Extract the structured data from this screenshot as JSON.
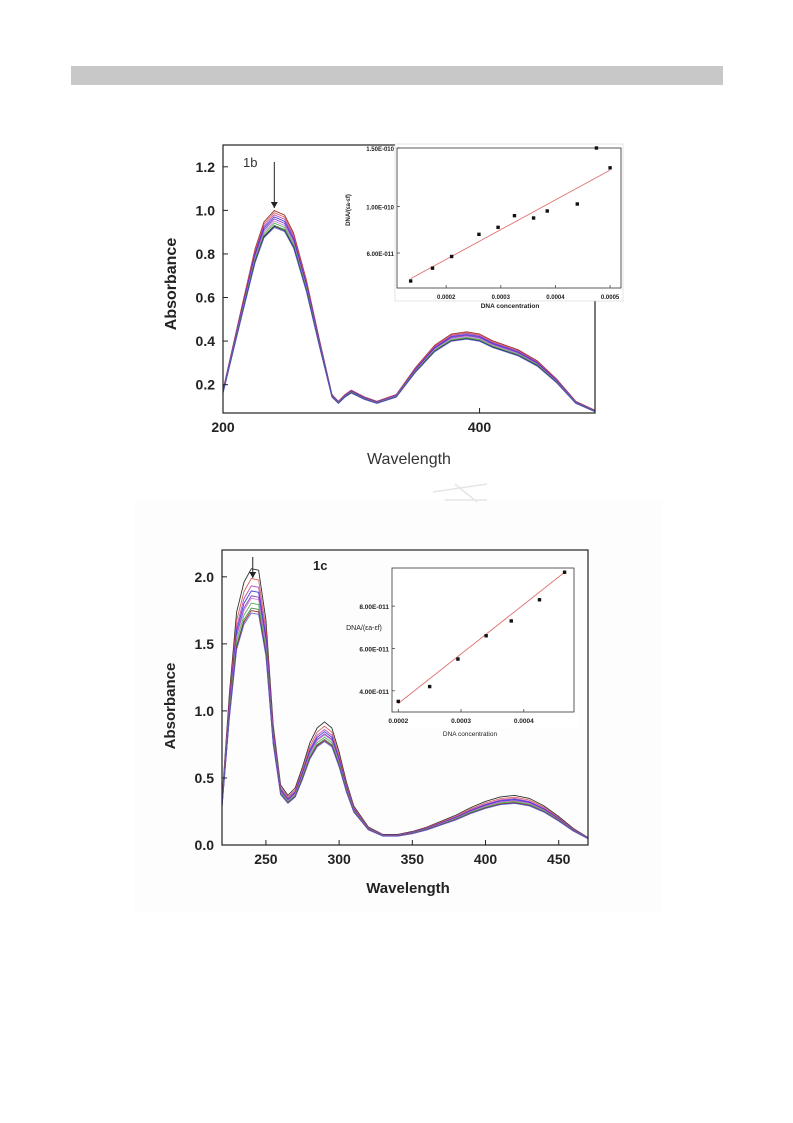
{
  "page": {
    "colors": {
      "header_bar": "#c8c8c8",
      "fit_line": "#e07070",
      "points": "#111111"
    }
  },
  "chart_data": [
    {
      "type": "line",
      "panel_label": "1b",
      "xlabel": "Wavelength",
      "ylabel": "Absorbance",
      "xlim": [
        200,
        490
      ],
      "ylim": [
        0.07,
        1.3
      ],
      "x_ticks": [
        "200",
        "400"
      ],
      "y_ticks": [
        "0.2",
        "0.4",
        "0.6",
        "0.8",
        "1.0",
        "1.2"
      ],
      "x_tick_values": [
        200,
        400
      ],
      "y_tick_values": [
        0.2,
        0.4,
        0.6,
        0.8,
        1.0,
        1.2
      ],
      "arrow_at_x": 240,
      "series_colors": [
        "#8b1a1a",
        "#d0554f",
        "#b83cb8",
        "#2a2ad6",
        "#7a2ab8",
        "#c878d8",
        "#4aa84a",
        "#3a7f3a",
        "#1a1a1a",
        "#5a5ad8"
      ],
      "series_scales": [
        1.03,
        1.02,
        1.01,
        1.0,
        0.99,
        0.98,
        0.97,
        0.96,
        0.955,
        0.95
      ],
      "profile": {
        "x": [
          200,
          215,
          225,
          232,
          240,
          248,
          255,
          265,
          275,
          285,
          290,
          295,
          300,
          310,
          320,
          335,
          350,
          365,
          378,
          390,
          400,
          410,
          420,
          430,
          445,
          460,
          475,
          490
        ],
        "y": [
          0.17,
          0.55,
          0.8,
          0.92,
          0.97,
          0.95,
          0.87,
          0.66,
          0.4,
          0.15,
          0.12,
          0.15,
          0.17,
          0.14,
          0.12,
          0.15,
          0.27,
          0.37,
          0.42,
          0.43,
          0.42,
          0.39,
          0.37,
          0.35,
          0.3,
          0.22,
          0.12,
          0.08
        ]
      },
      "inset": {
        "type": "scatter",
        "xlabel": "DNA concentration",
        "ylabel": "DNA/(εa-εf)",
        "xlim": [
          0.00011,
          0.00052
        ],
        "ylim": [
          3e-11,
          1.5e-10
        ],
        "x_ticks": [
          "0.0002",
          "0.0003",
          "0.0004",
          "0.0005"
        ],
        "y_ticks": [
          "6.00E-011",
          "1.00E-010",
          "1.50E-010"
        ],
        "x_tick_values": [
          0.0002,
          0.0003,
          0.0004,
          0.0005
        ],
        "y_tick_values": [
          6e-11,
          1e-10,
          1.5e-10
        ],
        "points": {
          "x": [
            0.000135,
            0.000175,
            0.00021,
            0.00026,
            0.000295,
            0.000325,
            0.00036,
            0.000385,
            0.00044,
            0.000475,
            0.0005
          ],
          "y": [
            3.6e-11,
            4.7e-11,
            5.7e-11,
            7.6e-11,
            8.2e-11,
            9.2e-11,
            9e-11,
            9.6e-11,
            1.02e-10,
            1.5e-10,
            1.33e-10
          ]
        },
        "fit": {
          "x": [
            0.000135,
            0.0005
          ],
          "y": [
            3.8e-11,
            1.31e-10
          ]
        }
      }
    },
    {
      "type": "line",
      "panel_label": "1c",
      "xlabel": "Wavelength",
      "ylabel": "Absorbance",
      "xlim": [
        220,
        470
      ],
      "ylim": [
        0,
        2.2
      ],
      "x_ticks": [
        "250",
        "300",
        "350",
        "400",
        "450"
      ],
      "y_ticks": [
        "0.0",
        "0.5",
        "1.0",
        "1.5",
        "2.0"
      ],
      "x_tick_values": [
        250,
        300,
        350,
        400,
        450
      ],
      "y_tick_values": [
        0.0,
        0.5,
        1.0,
        1.5,
        2.0
      ],
      "arrow_at_x": 241,
      "series_colors": [
        "#1a1a1a",
        "#d0554f",
        "#b83cb8",
        "#2a2ad6",
        "#7a2ab8",
        "#c878d8",
        "#4aa84a",
        "#3a7f3a",
        "#8b1a1a",
        "#5a5ad8"
      ],
      "series_scales": [
        1.12,
        1.08,
        1.05,
        1.03,
        1.01,
        1.0,
        0.98,
        0.96,
        0.95,
        0.94
      ],
      "profile": {
        "x": [
          220,
          225,
          230,
          235,
          240,
          245,
          250,
          255,
          260,
          265,
          270,
          275,
          280,
          285,
          290,
          295,
          300,
          305,
          310,
          320,
          330,
          340,
          350,
          360,
          370,
          380,
          390,
          400,
          410,
          420,
          430,
          440,
          450,
          460,
          470
        ],
        "y": [
          0.3,
          1.0,
          1.55,
          1.75,
          1.84,
          1.83,
          1.5,
          0.8,
          0.4,
          0.33,
          0.38,
          0.52,
          0.68,
          0.78,
          0.82,
          0.78,
          0.62,
          0.42,
          0.26,
          0.12,
          0.07,
          0.07,
          0.09,
          0.12,
          0.16,
          0.2,
          0.25,
          0.29,
          0.32,
          0.33,
          0.31,
          0.26,
          0.19,
          0.11,
          0.05
        ]
      },
      "inset": {
        "type": "scatter",
        "xlabel": "DNA concentration",
        "ylabel": "DNA/(εa-εf)",
        "xlim": [
          0.00019,
          0.00048
        ],
        "ylim": [
          3e-11,
          9.8e-11
        ],
        "x_ticks": [
          "0.0002",
          "0.0003",
          "0.0004"
        ],
        "y_ticks": [
          "4.00E-011",
          "6.00E-011",
          "8.00E-011"
        ],
        "x_tick_values": [
          0.0002,
          0.0003,
          0.0004
        ],
        "y_tick_values": [
          4e-11,
          6e-11,
          8e-11
        ],
        "points": {
          "x": [
            0.0002,
            0.00025,
            0.000295,
            0.00034,
            0.00038,
            0.000425,
            0.000465
          ],
          "y": [
            3.5e-11,
            4.2e-11,
            5.5e-11,
            6.6e-11,
            7.3e-11,
            8.3e-11,
            9.6e-11
          ]
        },
        "fit": {
          "x": [
            0.0002,
            0.000465
          ],
          "y": [
            3.4e-11,
            9.6e-11
          ]
        }
      }
    }
  ]
}
